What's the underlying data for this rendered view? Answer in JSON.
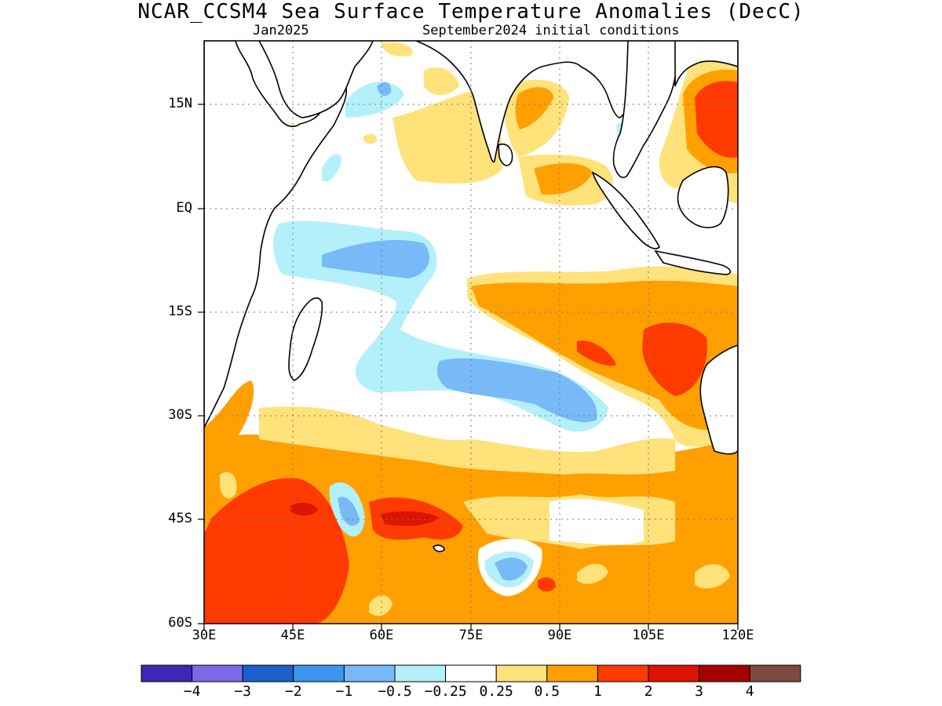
{
  "title": "NCAR_CCSM4 Sea Surface Temperature Anomalies (DecC)",
  "subtitle_left": "Jan2025",
  "subtitle_right": "September2024 initial conditions",
  "lat_labels": [
    "15N",
    "EQ",
    "15S",
    "30S",
    "45S",
    "60S"
  ],
  "lon_labels": [
    "30E",
    "45E",
    "60E",
    "75E",
    "90E",
    "105E",
    "120E"
  ],
  "colorbar": {
    "ticks": [
      "−4",
      "−3",
      "−2",
      "−1",
      "−0.5",
      "−0.25",
      "0.25",
      "0.5",
      "1",
      "2",
      "3",
      "4"
    ],
    "colors": [
      "#3c28b4",
      "#7b6ae8",
      "#1c5fcc",
      "#3c96f0",
      "#78b9f8",
      "#b4f0fa",
      "#ffffff",
      "#ffe27a",
      "#ffa000",
      "#ff3a00",
      "#dc1400",
      "#a50000",
      "#7a4b3e"
    ]
  },
  "map": {
    "lat_range": [
      -60,
      24
    ],
    "lon_range": [
      30,
      120
    ],
    "grid": true
  }
}
